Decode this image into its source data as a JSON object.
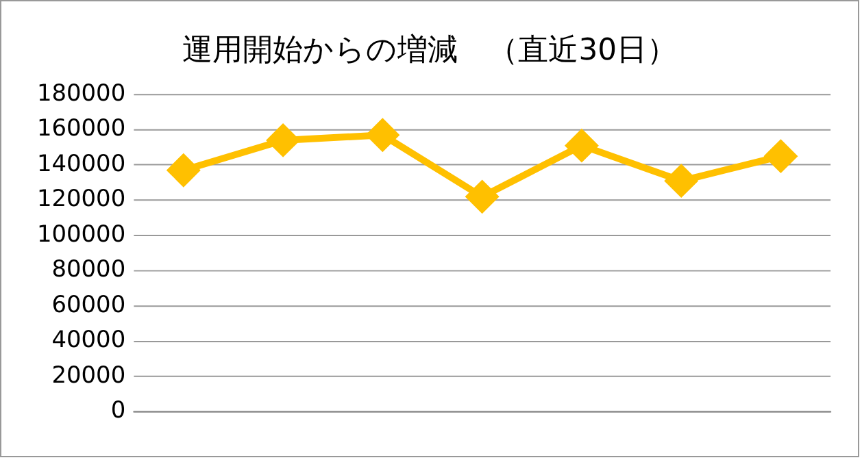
{
  "chart_data": {
    "type": "line",
    "title": "運用開始からの増減　（直近30日）",
    "categories": [
      null,
      null,
      null,
      null,
      null,
      null,
      null
    ],
    "series": [
      {
        "color": "#ffc000",
        "values": [
          137000,
          154000,
          157000,
          122000,
          151000,
          131000,
          145000
        ]
      }
    ],
    "ylim": [
      0,
      180000
    ],
    "yticks": [
      0,
      20000,
      40000,
      60000,
      80000,
      100000,
      120000,
      140000,
      160000,
      180000
    ],
    "grid": "y",
    "legend": false,
    "marker": "diamond",
    "line_style": "solid"
  }
}
